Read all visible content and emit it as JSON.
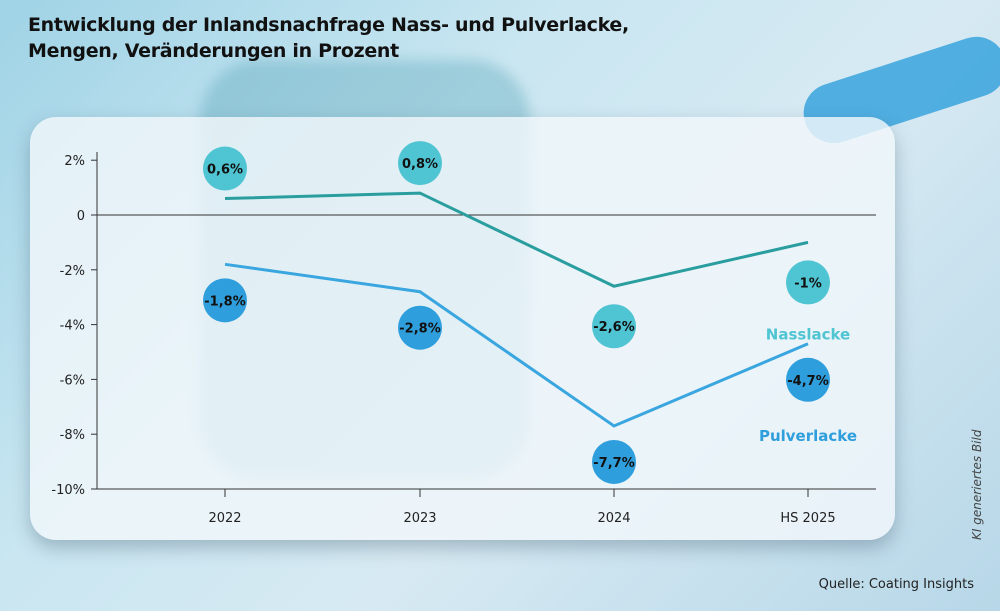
{
  "title_line1": "Entwicklung der Inlandsnachfrage Nass- und Pulverlacke,",
  "title_line2": "Mengen, Veränderungen in Prozent",
  "source": "Quelle: Coating Insights",
  "image_note": "KI generiertes Bild",
  "chart_data": {
    "type": "line",
    "title": "Entwicklung der Inlandsnachfrage Nass- und Pulverlacke, Mengen, Veränderungen in Prozent",
    "categories": [
      "2022",
      "2023",
      "2024",
      "HS 2025"
    ],
    "yticks": [
      {
        "v": 2,
        "label": "2%"
      },
      {
        "v": 0,
        "label": "0"
      },
      {
        "v": -2,
        "label": "-2%"
      },
      {
        "v": -4,
        "label": "-4%"
      },
      {
        "v": -6,
        "label": "-6%"
      },
      {
        "v": -8,
        "label": "-8%"
      },
      {
        "v": -10,
        "label": "-10%"
      }
    ],
    "ylim": [
      -10,
      2
    ],
    "series": [
      {
        "name": "Nasslacke",
        "values": [
          0.6,
          0.8,
          -2.6,
          -1.0
        ],
        "labels": [
          "0,6%",
          "0,8%",
          "-2,6%",
          "-1%"
        ],
        "line_color": "#2a9e9f",
        "bubble_color": "#4fc4d2",
        "label_color": "#4fc4d2",
        "bubble_pos": [
          "above",
          "above",
          "below",
          "below"
        ]
      },
      {
        "name": "Pulverlacke",
        "values": [
          -1.8,
          -2.8,
          -7.7,
          -4.7
        ],
        "labels": [
          "-1,8%",
          "-2,8%",
          "-7,7%",
          "-4,7%"
        ],
        "line_color": "#3aa6e0",
        "bubble_color": "#2f9edc",
        "label_color": "#2f9edc",
        "bubble_pos": [
          "below",
          "below",
          "below",
          "below"
        ]
      }
    ]
  }
}
